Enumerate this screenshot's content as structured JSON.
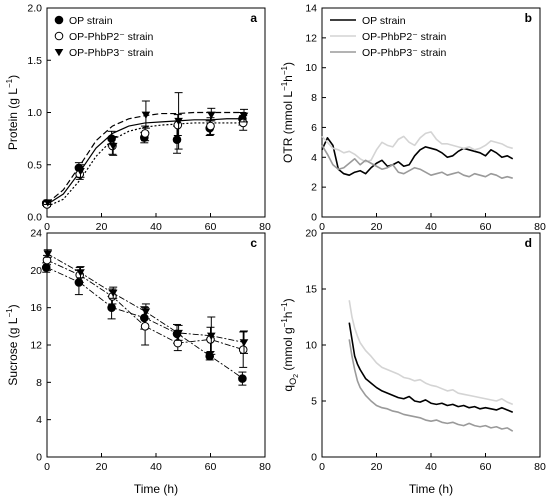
{
  "chart_data": [
    {
      "panel": "a",
      "type": "scatter",
      "ylabel": "Protein (g L",
      "ylabel_sup": "−1",
      "ylabel_end": ")",
      "xlim": [
        0,
        80
      ],
      "ylim": [
        0,
        2.0
      ],
      "xticks": [
        0,
        20,
        40,
        60,
        80
      ],
      "yticks": [
        "0.0",
        "0.5",
        "1.0",
        "1.5",
        "2.0"
      ],
      "ytick_values": [
        0,
        0.5,
        1.0,
        1.5,
        2.0
      ],
      "legend": "top-left",
      "series": [
        {
          "name": "OP strain",
          "marker": "filled-circle",
          "x": [
            0,
            12,
            24,
            36,
            48,
            60,
            72
          ],
          "y": [
            0.13,
            0.47,
            0.75,
            0.76,
            0.74,
            0.85,
            0.94
          ],
          "err": [
            0.02,
            0.05,
            0.07,
            0.05,
            0.13,
            0.07,
            0.06
          ],
          "fit": {
            "style": "solid",
            "x": [
              0,
              6,
              12,
              18,
              24,
              30,
              36,
              42,
              48,
              54,
              60,
              66,
              72
            ],
            "y": [
              0.12,
              0.22,
              0.43,
              0.66,
              0.8,
              0.87,
              0.9,
              0.91,
              0.92,
              0.93,
              0.93,
              0.94,
              0.94
            ]
          }
        },
        {
          "name": "OP-PhbP2⁻ strain",
          "marker": "open-circle",
          "x": [
            0,
            12,
            24,
            36,
            48,
            60,
            72
          ],
          "y": [
            0.12,
            0.41,
            0.68,
            0.8,
            0.88,
            0.87,
            0.9
          ],
          "err": [
            0.02,
            0.05,
            0.08,
            0.07,
            0.1,
            0.08,
            0.07
          ],
          "fit": {
            "style": "dotted",
            "x": [
              0,
              6,
              12,
              18,
              24,
              30,
              36,
              42,
              48,
              54,
              60,
              66,
              72
            ],
            "y": [
              0.1,
              0.17,
              0.35,
              0.58,
              0.74,
              0.82,
              0.86,
              0.88,
              0.89,
              0.9,
              0.9,
              0.9,
              0.9
            ]
          }
        },
        {
          "name": "OP-PhbP3⁻ strain",
          "marker": "filled-triangle-down",
          "x": [
            0,
            12,
            24,
            36,
            48,
            60,
            72
          ],
          "y": [
            0.14,
            0.44,
            0.68,
            0.98,
            0.92,
            0.98,
            0.97
          ],
          "err": [
            0.02,
            0.06,
            0.09,
            0.13,
            0.27,
            0.06,
            0.06
          ],
          "fit": {
            "style": "dashed",
            "x": [
              0,
              6,
              12,
              18,
              24,
              30,
              36,
              42,
              48,
              54,
              60,
              66,
              72
            ],
            "y": [
              0.13,
              0.26,
              0.49,
              0.73,
              0.87,
              0.94,
              0.97,
              0.99,
              0.99,
              1.0,
              1.0,
              1.0,
              1.0
            ]
          }
        }
      ]
    },
    {
      "panel": "b",
      "type": "line",
      "ylabel": "OTR (mmol L",
      "ylabel_sup": "−1",
      "ylabel_mid": "h",
      "ylabel_sup2": "−1",
      "ylabel_end": ")",
      "xlim": [
        0,
        80
      ],
      "ylim": [
        0,
        14
      ],
      "xticks": [
        0,
        20,
        40,
        60,
        80
      ],
      "yticks": [
        "0",
        "2",
        "4",
        "6",
        "8",
        "10",
        "12",
        "14"
      ],
      "ytick_values": [
        0,
        2,
        4,
        6,
        8,
        10,
        12,
        14
      ],
      "legend": "top-left",
      "series": [
        {
          "name": "OP strain",
          "color": "#000000",
          "x": [
            0,
            2,
            4,
            6,
            8,
            10,
            12,
            14,
            16,
            18,
            20,
            22,
            24,
            26,
            28,
            30,
            32,
            34,
            36,
            38,
            40,
            42,
            44,
            46,
            48,
            50,
            52,
            54,
            56,
            58,
            60,
            62,
            64,
            66,
            68,
            70
          ],
          "y": [
            4.5,
            5.3,
            4.8,
            3.2,
            2.9,
            2.8,
            3.0,
            3.1,
            2.9,
            3.3,
            3.6,
            3.8,
            3.4,
            3.5,
            3.7,
            3.4,
            3.5,
            4.1,
            4.5,
            4.7,
            4.6,
            4.5,
            4.3,
            4.0,
            4.1,
            4.4,
            4.6,
            4.5,
            4.4,
            4.3,
            4.1,
            4.5,
            4.3,
            4.0,
            4.1,
            3.9
          ]
        },
        {
          "name": "OP-PhbP2⁻ strain",
          "color": "#d4d4d4",
          "x": [
            0,
            2,
            4,
            6,
            8,
            10,
            12,
            14,
            16,
            18,
            20,
            22,
            24,
            26,
            28,
            30,
            32,
            34,
            36,
            38,
            40,
            42,
            44,
            46,
            48,
            50,
            52,
            54,
            56,
            58,
            60,
            62,
            64,
            66,
            68,
            70
          ],
          "y": [
            5.4,
            5.0,
            4.6,
            4.5,
            4.3,
            4.4,
            4.2,
            3.9,
            3.7,
            3.8,
            4.5,
            5.0,
            4.8,
            4.7,
            5.2,
            5.4,
            5.0,
            4.8,
            5.3,
            5.6,
            5.7,
            5.2,
            4.9,
            4.9,
            4.8,
            4.7,
            4.6,
            4.7,
            4.5,
            4.6,
            4.8,
            5.1,
            5.0,
            4.9,
            4.7,
            4.6
          ]
        },
        {
          "name": "OP-PhbP3⁻ strain",
          "color": "#9a9a9a",
          "x": [
            0,
            2,
            4,
            6,
            8,
            10,
            12,
            14,
            16,
            18,
            20,
            22,
            24,
            26,
            28,
            30,
            32,
            34,
            36,
            38,
            40,
            42,
            44,
            46,
            48,
            50,
            52,
            54,
            56,
            58,
            60,
            62,
            64,
            66,
            68,
            70
          ],
          "y": [
            4.8,
            4.2,
            3.5,
            3.2,
            3.3,
            3.6,
            3.9,
            3.5,
            3.8,
            3.6,
            3.4,
            3.2,
            3.3,
            3.5,
            3.0,
            2.9,
            3.1,
            3.3,
            3.2,
            3.0,
            2.8,
            2.9,
            3.0,
            2.8,
            2.9,
            3.0,
            2.8,
            2.7,
            2.9,
            2.8,
            2.7,
            2.9,
            2.8,
            2.6,
            2.7,
            2.6
          ]
        }
      ]
    },
    {
      "panel": "c",
      "type": "scatter",
      "xlabel": "Time (h)",
      "ylabel": "Sucrose (g L",
      "ylabel_sup": "−1",
      "ylabel_end": ")",
      "xlim": [
        0,
        80
      ],
      "ylim": [
        0,
        24
      ],
      "xticks": [
        0,
        20,
        40,
        60,
        80
      ],
      "yticks": [
        "0",
        "4",
        "8",
        "12",
        "16",
        "20",
        "24"
      ],
      "ytick_values": [
        0,
        4,
        8,
        12,
        16,
        20,
        24
      ],
      "series": [
        {
          "name": "OP strain",
          "marker": "filled-circle",
          "line": "dashdot",
          "x": [
            0,
            12,
            24,
            36,
            48,
            60,
            72
          ],
          "y": [
            20.3,
            18.7,
            16.0,
            14.9,
            13.2,
            10.8,
            8.4
          ],
          "err": [
            0.5,
            1.3,
            1.2,
            1.2,
            1.0,
            0.4,
            0.7
          ]
        },
        {
          "name": "OP-PhbP2⁻ strain",
          "marker": "open-circle",
          "line": "dashdot",
          "x": [
            0,
            12,
            24,
            36,
            48,
            60,
            72
          ],
          "y": [
            21.1,
            19.5,
            17.2,
            14.0,
            12.2,
            12.6,
            11.5
          ],
          "err": [
            0.5,
            0.8,
            0.8,
            2.0,
            0.8,
            1.3,
            1.9
          ]
        },
        {
          "name": "OP-PhbP3⁻ strain",
          "marker": "filled-triangle-down",
          "line": "dashdot",
          "x": [
            0,
            12,
            24,
            36,
            48,
            60,
            72
          ],
          "y": [
            21.8,
            19.8,
            17.6,
            15.6,
            13.3,
            13.0,
            12.3
          ],
          "err": [
            0.4,
            0.6,
            0.6,
            0.8,
            0.8,
            2.0,
            1.2
          ]
        }
      ]
    },
    {
      "panel": "d",
      "type": "line",
      "xlabel": "Time (h)",
      "ylabel": "q",
      "ylabel_sub": "O",
      "ylabel_sub2": "2",
      "ylabel_end": " (mmol g",
      "ylabel_sup": "−1",
      "ylabel_mid": "h",
      "ylabel_sup2": "−1",
      "ylabel_close": ")",
      "xlim": [
        0,
        80
      ],
      "ylim": [
        0,
        20
      ],
      "xticks": [
        0,
        20,
        40,
        60,
        80
      ],
      "yticks": [
        "0",
        "5",
        "10",
        "15",
        "20"
      ],
      "ytick_values": [
        0,
        5,
        10,
        15,
        20
      ],
      "series": [
        {
          "name": "OP strain",
          "color": "#000000",
          "x": [
            10,
            11,
            12,
            13,
            14,
            16,
            18,
            20,
            22,
            24,
            26,
            28,
            30,
            32,
            34,
            36,
            38,
            40,
            42,
            44,
            46,
            48,
            50,
            52,
            54,
            56,
            58,
            60,
            62,
            64,
            66,
            68,
            70
          ],
          "y": [
            12.0,
            10.5,
            9.0,
            8.3,
            7.8,
            7.0,
            6.6,
            6.2,
            5.9,
            5.7,
            5.5,
            5.3,
            5.2,
            5.4,
            5.0,
            4.9,
            5.1,
            4.8,
            4.7,
            4.8,
            4.6,
            4.7,
            4.5,
            4.6,
            4.4,
            4.5,
            4.3,
            4.4,
            4.3,
            4.2,
            4.4,
            4.2,
            4.0
          ]
        },
        {
          "name": "OP-PhbP2⁻ strain",
          "color": "#d4d4d4",
          "x": [
            10,
            11,
            12,
            13,
            14,
            16,
            18,
            20,
            22,
            24,
            26,
            28,
            30,
            32,
            34,
            36,
            38,
            40,
            42,
            44,
            46,
            48,
            50,
            52,
            54,
            56,
            58,
            60,
            62,
            64,
            66,
            68,
            70
          ],
          "y": [
            14.0,
            12.5,
            11.5,
            10.8,
            10.2,
            9.5,
            9.0,
            8.4,
            8.0,
            7.8,
            7.6,
            7.4,
            7.1,
            7.0,
            6.8,
            6.9,
            6.6,
            6.4,
            6.3,
            6.1,
            5.9,
            6.0,
            5.7,
            5.6,
            5.5,
            5.4,
            5.3,
            5.2,
            5.1,
            5.0,
            5.2,
            4.9,
            4.7
          ]
        },
        {
          "name": "OP-PhbP3⁻ strain",
          "color": "#9a9a9a",
          "x": [
            10,
            11,
            12,
            13,
            14,
            16,
            18,
            20,
            22,
            24,
            26,
            28,
            30,
            32,
            34,
            36,
            38,
            40,
            42,
            44,
            46,
            48,
            50,
            52,
            54,
            56,
            58,
            60,
            62,
            64,
            66,
            68,
            70
          ],
          "y": [
            10.5,
            9.0,
            7.8,
            6.8,
            6.2,
            5.5,
            5.0,
            4.6,
            4.4,
            4.3,
            4.1,
            4.0,
            3.8,
            3.7,
            3.6,
            3.5,
            3.3,
            3.2,
            3.3,
            3.1,
            3.0,
            3.1,
            2.9,
            2.8,
            3.0,
            2.8,
            2.7,
            2.8,
            2.6,
            2.7,
            2.5,
            2.6,
            2.3
          ]
        }
      ]
    }
  ]
}
